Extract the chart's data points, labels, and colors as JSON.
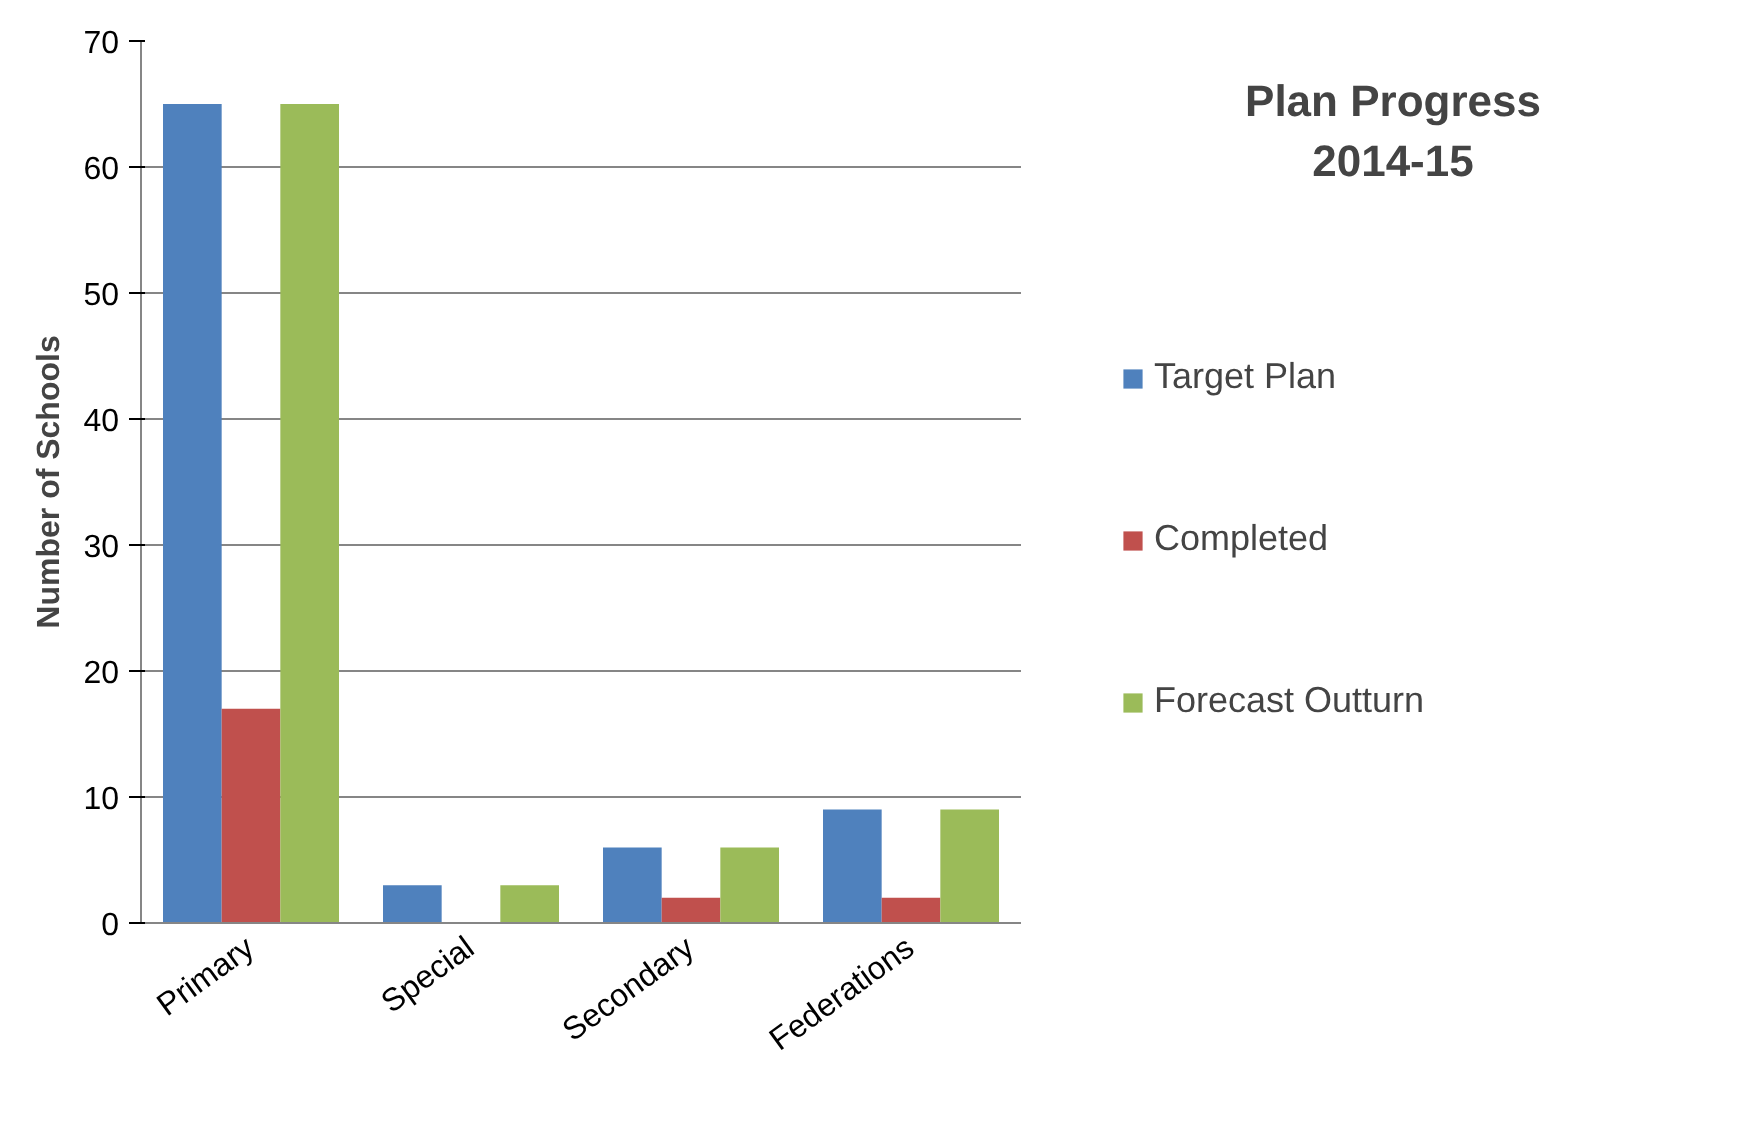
{
  "chart_data": {
    "type": "bar",
    "title": "Plan Progress\n2014-15",
    "ylabel": "Number of Schools",
    "categories": [
      "Primary",
      "Special",
      "Secondary",
      "Federations"
    ],
    "series": [
      {
        "name": "Target Plan",
        "color": "#4f81bd",
        "values": [
          65,
          3,
          6,
          9
        ]
      },
      {
        "name": "Completed",
        "color": "#c0504d",
        "values": [
          17,
          0,
          2,
          2
        ]
      },
      {
        "name": "Forecast Outturn",
        "color": "#9bbb59",
        "values": [
          65,
          3,
          6,
          9
        ]
      }
    ],
    "ylim": [
      0,
      70
    ],
    "yticks": [
      0,
      10,
      20,
      30,
      40,
      50,
      60,
      70
    ],
    "grid": "y",
    "legend": "right"
  }
}
